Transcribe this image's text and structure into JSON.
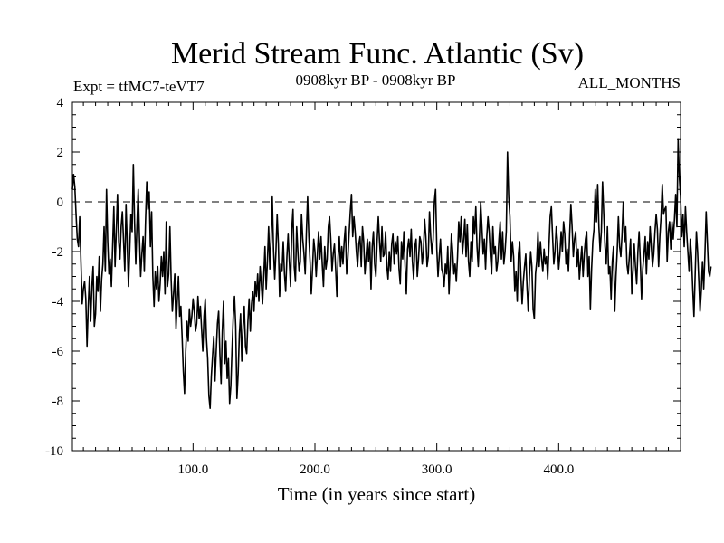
{
  "chart_data": {
    "type": "line",
    "title": "Merid Stream Func. Atlantic (Sv)",
    "subtitle_left": "Expt = tfMC7-teVT7",
    "subtitle_center": "0908kyr BP - 0908kyr BP",
    "subtitle_right": "ALL_MONTHS",
    "xlabel": "Time (in years since start)",
    "ylabel": "",
    "xlim": [
      1,
      500
    ],
    "ylim": [
      -10,
      4
    ],
    "x_ticks": [
      100,
      200,
      300,
      400
    ],
    "x_tick_labels": [
      "100.0",
      "200.0",
      "300.0",
      "400.0"
    ],
    "y_ticks": [
      -10,
      -8,
      -6,
      -4,
      -2,
      0,
      2,
      4
    ],
    "y_tick_labels": [
      "-10",
      "-8",
      "-6",
      "-4",
      "-2",
      "0",
      "2",
      "4"
    ],
    "reference_line": 0,
    "grid": false,
    "series": [
      {
        "name": "Merid Stream Func. Atlantic",
        "x_start": 1,
        "x_step": 1,
        "values": [
          0.5,
          1.1,
          0.6,
          -0.5,
          -1.5,
          -1.8,
          -0.6,
          -2.4,
          -4.1,
          -3.5,
          -3.2,
          -3.9,
          -5.8,
          -4.2,
          -3.0,
          -4.8,
          -3.4,
          -2.6,
          -5.0,
          -4.5,
          -3.0,
          -3.6,
          -2.2,
          -4.4,
          -3.1,
          -2.5,
          -1.0,
          -2.8,
          0.5,
          -1.6,
          -2.9,
          -2.3,
          -3.4,
          -1.8,
          -0.2,
          -2.6,
          -1.2,
          0.3,
          -1.6,
          -2.3,
          -1.0,
          -0.4,
          -1.6,
          -2.8,
          -0.1,
          -1.7,
          -3.4,
          -2.0,
          -0.5,
          -1.2,
          1.5,
          -0.8,
          -2.5,
          -0.9,
          0.5,
          -1.4,
          -3.0,
          -2.1,
          -1.4,
          -2.8,
          -0.8,
          0.8,
          -0.3,
          0.4,
          -1.8,
          -0.4,
          -3.0,
          -4.2,
          -2.8,
          -3.5,
          -2.6,
          -4.0,
          -3.3,
          -2.2,
          -3.0,
          -2.0,
          -3.7,
          -0.8,
          -3.4,
          -2.9,
          -1.0,
          -3.1,
          -4.4,
          -3.7,
          -2.9,
          -5.1,
          -4.0,
          -3.0,
          -4.6,
          -4.2,
          -5.4,
          -6.8,
          -7.7,
          -6.0,
          -4.8,
          -5.6,
          -4.3,
          -5.0,
          -4.6,
          -3.9,
          -4.4,
          -5.2,
          -4.9,
          -3.8,
          -4.7,
          -4.2,
          -5.1,
          -6.0,
          -4.6,
          -3.9,
          -5.5,
          -6.3,
          -7.8,
          -8.3,
          -7.0,
          -6.2,
          -5.4,
          -7.2,
          -6.0,
          -4.9,
          -4.4,
          -6.1,
          -7.3,
          -5.2,
          -4.0,
          -6.5,
          -5.6,
          -7.1,
          -6.3,
          -8.1,
          -7.4,
          -5.9,
          -4.6,
          -3.8,
          -5.0,
          -7.9,
          -6.9,
          -5.3,
          -4.5,
          -6.4,
          -5.0,
          -4.2,
          -5.8,
          -6.1,
          -4.8,
          -3.9,
          -5.2,
          -4.1,
          -3.6,
          -4.4,
          -3.2,
          -3.8,
          -2.9,
          -4.0,
          -2.6,
          -3.3,
          -4.1,
          -3.0,
          -1.8,
          -3.5,
          -2.4,
          -1.0,
          -2.7,
          -1.5,
          0.2,
          -1.9,
          -3.1,
          -2.0,
          -0.5,
          -1.7,
          -3.8,
          -2.5,
          -2.8,
          -1.6,
          -2.9,
          -3.6,
          -2.2,
          -1.3,
          -2.4,
          -3.4,
          -1.1,
          -0.3,
          -2.6,
          -3.2,
          -1.0,
          -2.0,
          -2.8,
          -2.4,
          -0.5,
          -1.5,
          -2.1,
          -2.9,
          -1.2,
          0.2,
          -1.4,
          -2.4,
          -3.7,
          -2.7,
          -1.5,
          -2.0,
          -3.0,
          -2.1,
          -1.2,
          -2.3,
          -1.4,
          -2.5,
          -3.4,
          -1.8,
          -2.7,
          -2.3,
          -1.0,
          -0.6,
          -1.5,
          -2.8,
          -2.1,
          -1.7,
          -2.7,
          -3.8,
          -2.2,
          -1.4,
          -2.6,
          -1.8,
          -2.5,
          -1.6,
          -1.0,
          -2.9,
          -2.3,
          -1.3,
          -0.4,
          0.3,
          -1.4,
          -0.6,
          -1.2,
          -2.0,
          -2.6,
          -1.7,
          -1.4,
          -2.6,
          -1.0,
          -1.6,
          -2.9,
          -2.2,
          -1.5,
          -2.4,
          -1.6,
          -3.5,
          -1.8,
          -1.2,
          -2.5,
          -3.0,
          -1.6,
          -0.6,
          -1.6,
          -2.4,
          -1.0,
          -2.2,
          -2.1,
          -1.2,
          -2.6,
          -3.1,
          -2.0,
          -2.8,
          -1.7,
          -1.3,
          -2.5,
          -1.6,
          -2.1,
          -1.4,
          -2.7,
          -3.3,
          -1.6,
          -2.3,
          -1.2,
          -2.6,
          -3.7,
          -1.9,
          -1.5,
          -2.2,
          -1.1,
          -2.4,
          -3.1,
          -1.8,
          -1.5,
          -3.0,
          -2.3,
          -1.4,
          -1.6,
          -2.5,
          -2.0,
          -0.7,
          -1.4,
          -2.6,
          -2.2,
          -0.4,
          -1.4,
          -2.1,
          -1.5,
          0.0,
          0.5,
          -1.9,
          -3.0,
          -2.2,
          -1.5,
          -2.7,
          -2.9,
          -3.4,
          -2.5,
          -2.9,
          -1.8,
          -3.7,
          -2.5,
          -1.3,
          -2.0,
          -2.9,
          -2.5,
          -3.2,
          -2.2,
          -0.8,
          -1.6,
          -0.6,
          -2.1,
          -1.5,
          -0.7,
          -2.2,
          -0.9,
          -2.4,
          -3.0,
          -1.6,
          -2.4,
          -0.6,
          -1.3,
          -0.2,
          -1.8,
          -2.6,
          -1.4,
          0.0,
          -1.0,
          -2.1,
          -1.5,
          -2.7,
          -1.4,
          -0.6,
          -1.2,
          -2.2,
          -2.9,
          -1.0,
          -2.1,
          -1.8,
          -2.8,
          -2.4,
          -1.5,
          -0.8,
          -2.3,
          -1.2,
          -2.5,
          -2.0,
          -1.2,
          2.0,
          0.2,
          -0.6,
          -2.4,
          -1.6,
          -2.2,
          -3.6,
          -2.8,
          -4.0,
          -2.1,
          -1.6,
          -3.0,
          -4.1,
          -3.2,
          -2.6,
          -2.1,
          -3.4,
          -4.4,
          -3.0,
          -2.0,
          -2.6,
          -4.3,
          -4.7,
          -2.9,
          -2.4,
          -1.2,
          -2.6,
          -1.6,
          -2.3,
          -2.8,
          -1.9,
          -2.5,
          -2.2,
          -3.1,
          -1.8,
          -0.6,
          -0.2,
          -1.4,
          -2.5,
          -2.0,
          -1.0,
          -1.6,
          -2.7,
          -2.1,
          -1.2,
          -2.0,
          -0.8,
          -1.3,
          -2.5,
          -1.9,
          -2.8,
          -1.3,
          -0.1,
          -1.0,
          -2.2,
          -1.5,
          -1.2,
          -2.6,
          -1.9,
          -3.1,
          -2.4,
          -1.8,
          -3.0,
          -2.1,
          -1.5,
          -1.2,
          -3.0,
          -2.2,
          -4.3,
          -2.7,
          -1.6,
          -1.1,
          0.5,
          -0.8,
          0.7,
          -1.0,
          -2.0,
          -1.2,
          0.8,
          -0.5,
          -1.8,
          -2.5,
          -1.0,
          -2.9,
          -2.6,
          -3.9,
          -2.4,
          -1.8,
          -4.4,
          -3.0,
          -2.0,
          -0.6,
          -1.8,
          -2.2,
          -1.3,
          0.0,
          -1.6,
          -1.0,
          -2.5,
          -2.9,
          -2.2,
          -1.5,
          -3.7,
          -2.8,
          -1.7,
          -2.6,
          -3.3,
          -2.0,
          -1.2,
          -2.4,
          -3.9,
          -2.7,
          -2.1,
          -1.4,
          -2.9,
          -1.6,
          -2.3,
          -1.0,
          -1.8,
          -2.6,
          -2.1,
          -1.2,
          -0.5,
          -1.1,
          -2.6,
          -1.4,
          -0.6,
          0.7,
          -0.5,
          -0.3,
          -0.2,
          -2.4,
          -1.2,
          -0.8,
          -1.9,
          -0.8,
          -1.5,
          -0.7,
          0.3,
          -1.0,
          2.5,
          1.0,
          0.2,
          -1.4,
          -0.5,
          -1.8,
          -0.2,
          -1.2,
          -2.0,
          -2.8,
          -1.5,
          -2.2,
          -3.5,
          -4.6,
          -2.9,
          -1.2,
          -2.0,
          -3.2,
          -4.4,
          -3.6,
          -2.4,
          -3.5,
          -2.1,
          -0.4,
          -1.6,
          -2.8,
          -3.0,
          -2.6
        ]
      }
    ]
  }
}
